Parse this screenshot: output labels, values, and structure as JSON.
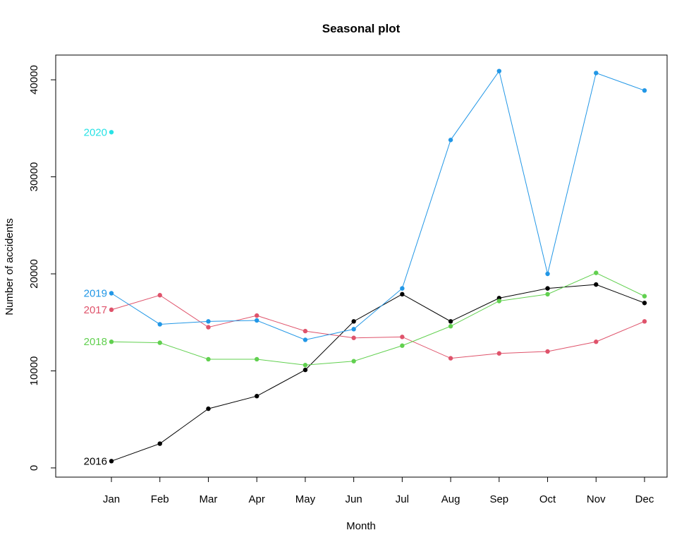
{
  "chart_data": {
    "type": "line",
    "title": "Seasonal plot",
    "x_label": "Month",
    "y_label": "Number of accidents",
    "categories": [
      "Jan",
      "Feb",
      "Mar",
      "Apr",
      "May",
      "Jun",
      "Jul",
      "Aug",
      "Sep",
      "Oct",
      "Nov",
      "Dec"
    ],
    "ylim": [
      -950,
      42550
    ],
    "yticks": [
      0,
      10000,
      20000,
      30000,
      40000
    ],
    "series": [
      {
        "name": "2016",
        "color": "#000000",
        "values": [
          700,
          2500,
          6100,
          7400,
          10100,
          15100,
          17900,
          15100,
          17500,
          18500,
          18900,
          17000
        ]
      },
      {
        "name": "2017",
        "color": "#DF536B",
        "values": [
          16300,
          17800,
          14500,
          15700,
          14100,
          13400,
          13500,
          11300,
          11800,
          12000,
          13000,
          15100
        ]
      },
      {
        "name": "2018",
        "color": "#61D04F",
        "values": [
          13000,
          12900,
          11200,
          11200,
          10600,
          11000,
          12600,
          14600,
          17200,
          17900,
          20100,
          17700
        ]
      },
      {
        "name": "2019",
        "color": "#2297E6",
        "values": [
          18000,
          14800,
          15100,
          15200,
          13200,
          14300,
          18500,
          33800,
          40900,
          20000,
          40700,
          38900
        ]
      },
      {
        "name": "2020",
        "color": "#28E2E5",
        "values": [
          34600,
          null,
          null,
          null,
          null,
          null,
          null,
          null,
          null,
          null,
          null,
          null
        ]
      }
    ]
  }
}
